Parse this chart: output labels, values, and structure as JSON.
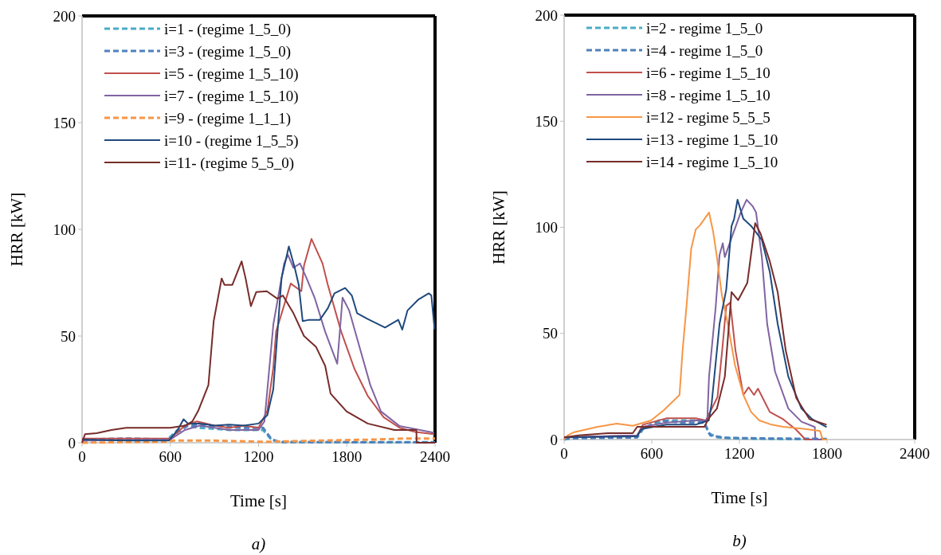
{
  "chart_data": [
    {
      "type": "line",
      "title": "a)",
      "xlabel": "Time [s]",
      "ylabel": "HRR [kW]",
      "xlim": [
        0,
        2400
      ],
      "ylim": [
        0,
        200
      ],
      "xticks": [
        0,
        600,
        1200,
        1800,
        2400
      ],
      "yticks": [
        0,
        50,
        100,
        150,
        200
      ],
      "legend": "top left",
      "grid": false,
      "series": [
        {
          "name": "i=1 - (regime 1_5_0)",
          "color": "#4bacc6",
          "line_style": "dashed",
          "x": [
            0,
            300,
            580,
            650,
            700,
            800,
            1000,
            1150,
            1230,
            1280,
            1320,
            1600,
            2000,
            2400
          ],
          "values": [
            1,
            1.5,
            1.5,
            6,
            8,
            7,
            6,
            6,
            6,
            2,
            0.5,
            0.3,
            0.3,
            0.3
          ]
        },
        {
          "name": "i=3 - (regime 1_5_0)",
          "color": "#4f81bd",
          "line_style": "dashed",
          "x": [
            0,
            300,
            590,
            650,
            720,
            900,
            1100,
            1230,
            1290,
            1350,
            2000,
            2400
          ],
          "values": [
            1.5,
            2,
            1.5,
            5,
            8,
            8,
            7,
            7,
            1.5,
            0.3,
            0.2,
            0.2
          ]
        },
        {
          "name": "i=5 - (regime 1_5_10)",
          "color": "#c0504d",
          "line_style": "solid",
          "x": [
            0,
            300,
            600,
            700,
            780,
            900,
            1000,
            1100,
            1200,
            1260,
            1300,
            1319,
            1419,
            1491,
            1509,
            1560,
            1635,
            1671,
            1762,
            1852,
            1942,
            2050,
            2159,
            2267,
            2394
          ],
          "values": [
            2,
            2,
            2,
            8,
            10,
            8,
            7,
            8,
            7,
            15,
            35,
            52,
            74.6,
            71,
            83,
            95.5,
            84,
            74,
            52,
            34.6,
            22,
            12,
            7,
            5,
            4
          ]
        },
        {
          "name": "i=7 - (regime 1_5_10)",
          "color": "#8064a2",
          "line_style": "solid",
          "x": [
            0,
            600,
            700,
            800,
            1000,
            1200,
            1240,
            1301,
            1374,
            1400,
            1437,
            1482,
            1527,
            1581,
            1653,
            1735,
            1771,
            1816,
            1888,
            1960,
            2032,
            2159,
            2394
          ],
          "values": [
            1,
            1.5,
            6,
            8,
            6,
            6,
            10,
            55.7,
            84,
            88,
            82,
            84,
            77,
            68,
            52,
            37,
            68,
            62,
            44.5,
            27,
            14.7,
            7.8,
            4.7
          ]
        },
        {
          "name": "i=9 - (regime 1_1_1)",
          "color": "#f79646",
          "line_style": "dashed",
          "x": [
            0,
            580,
            620,
            900,
            1200,
            1300,
            1600,
            2000,
            2200,
            2400
          ],
          "values": [
            0,
            0.5,
            1,
            1,
            0.5,
            0.5,
            1,
            1.5,
            2,
            2
          ]
        },
        {
          "name": "i=10 - (regime 1_5_5)",
          "color": "#1f497d",
          "line_style": "solid",
          "x": [
            0,
            300,
            590,
            650,
            690,
            720,
            800,
            900,
            1000,
            1100,
            1200,
            1260,
            1300,
            1356,
            1406,
            1446,
            1473,
            1500,
            1545,
            1617,
            1671,
            1716,
            1789,
            1834,
            1870,
            1942,
            2060,
            2150,
            2177,
            2213,
            2285,
            2357,
            2375,
            2397
          ],
          "values": [
            1.5,
            1,
            1,
            6,
            11,
            9,
            9,
            8,
            8.5,
            8,
            9,
            13,
            25,
            77,
            92,
            82,
            74,
            57,
            57.6,
            57.6,
            63,
            70,
            72.5,
            69,
            60.7,
            58,
            54,
            57.6,
            53,
            62,
            67,
            70,
            69,
            53
          ]
        },
        {
          "name": "i=11- (regime 5_5_0)",
          "color": "#772c2a",
          "line_style": "solid",
          "x": [
            0,
            20,
            100,
            200,
            300,
            400,
            500,
            600,
            700,
            750,
            790,
            859,
            895,
            949,
            968,
            1022,
            1085,
            1112,
            1148,
            1184,
            1256,
            1328,
            1365,
            1437,
            1509,
            1590,
            1653,
            1690,
            1798,
            1942,
            2123,
            2273,
            2275,
            2400
          ],
          "values": [
            0,
            4,
            4.5,
            6,
            7,
            7,
            7,
            7,
            8,
            10,
            15,
            27,
            57,
            77,
            74,
            74,
            85,
            77,
            64,
            70.6,
            71,
            67.5,
            69,
            60.7,
            50,
            45,
            36,
            23,
            14.7,
            9,
            6,
            6,
            0,
            0
          ]
        }
      ]
    },
    {
      "type": "line",
      "title": "b)",
      "xlabel": "Time [s]",
      "ylabel": "HRR [kW]",
      "xlim": [
        0,
        2400
      ],
      "ylim": [
        0,
        200
      ],
      "xticks": [
        0,
        600,
        1200,
        1800,
        2400
      ],
      "yticks": [
        0,
        50,
        100,
        150,
        200
      ],
      "legend": "top left",
      "grid": false,
      "series": [
        {
          "name": "i=2 - regime 1_5_0",
          "color": "#4bacc6",
          "line_style": "dashed",
          "x": [
            0,
            100,
            500,
            530,
            700,
            900,
            960,
            990,
            1050,
            1200,
            1500,
            1800
          ],
          "values": [
            0,
            1,
            1.5,
            5,
            9,
            9,
            8,
            3,
            1,
            0.5,
            0.2,
            0.2
          ]
        },
        {
          "name": "i=4 - regime 1_5_0",
          "color": "#4f81bd",
          "line_style": "dashed",
          "x": [
            0,
            500,
            540,
            650,
            800,
            960,
            1000,
            1100,
            1400,
            1800
          ],
          "values": [
            0.5,
            1,
            5,
            9,
            8,
            8,
            2,
            0.8,
            0.5,
            0.3
          ]
        },
        {
          "name": "i=6 - regime 1_5_10",
          "color": "#c0504d",
          "line_style": "solid",
          "x": [
            0,
            500,
            540,
            700,
            900,
            970,
            1050,
            1082,
            1110,
            1137,
            1173,
            1227,
            1263,
            1300,
            1327,
            1408,
            1499,
            1589,
            1652,
            1700
          ],
          "values": [
            1,
            2,
            7,
            10,
            10,
            9,
            20,
            42,
            63,
            64.5,
            42,
            21,
            24.6,
            21,
            24,
            13,
            9.6,
            4.6,
            0,
            0
          ]
        },
        {
          "name": "i=8 - regime 1_5_10",
          "color": "#8064a2",
          "line_style": "solid",
          "x": [
            0,
            500,
            540,
            700,
            900,
            980,
            992,
            1037,
            1064,
            1086,
            1100,
            1146,
            1209,
            1249,
            1290,
            1314,
            1354,
            1390,
            1444,
            1535,
            1625,
            1716,
            1720,
            1800
          ],
          "values": [
            1,
            2,
            6,
            8,
            9,
            9,
            29.6,
            62,
            87,
            92.5,
            86,
            95,
            107,
            113,
            110,
            107,
            85.7,
            54.5,
            32,
            14.6,
            8.4,
            5.9,
            0,
            0
          ]
        },
        {
          "name": "i=12 - regime 5_5_5",
          "color": "#f79646",
          "line_style": "solid",
          "x": [
            0,
            25,
            70,
            230,
            360,
            470,
            595,
            685,
            790,
            811,
            838,
            870,
            901,
            930,
            992,
            1020,
            1046,
            1080,
            1119,
            1170,
            1227,
            1280,
            1336,
            1420,
            1499,
            1650,
            1752,
            1770,
            1800
          ],
          "values": [
            0,
            2,
            3.5,
            6,
            7.5,
            6.5,
            9,
            14,
            21,
            42,
            63,
            90,
            99,
            101,
            107,
            98,
            86,
            68,
            55,
            35,
            21,
            13,
            9,
            7,
            6,
            5,
            4,
            0,
            0
          ]
        },
        {
          "name": "i=13 - regime 1_5_10",
          "color": "#1f497d",
          "line_style": "solid",
          "x": [
            0,
            500,
            530,
            700,
            900,
            990,
            1010,
            1064,
            1110,
            1146,
            1164,
            1187,
            1227,
            1281,
            1354,
            1408,
            1462,
            1535,
            1625,
            1698,
            1797
          ],
          "values": [
            1,
            1.5,
            5,
            7,
            7,
            9,
            17,
            54.5,
            70.7,
            100.6,
            104,
            113,
            104,
            100.6,
            94,
            79,
            54.5,
            29.6,
            14.6,
            9.6,
            5.9
          ]
        },
        {
          "name": "i=14 - regime 1_5_10",
          "color": "#772c2a",
          "line_style": "solid",
          "x": [
            0,
            100,
            300,
            470,
            500,
            700,
            900,
            960,
            990,
            1046,
            1100,
            1146,
            1191,
            1254,
            1308,
            1345,
            1408,
            1462,
            1517,
            1589,
            1680,
            1797
          ],
          "values": [
            1,
            2,
            3,
            3,
            6,
            6,
            6,
            6,
            10,
            14.6,
            29.6,
            69.5,
            65.7,
            73.8,
            102,
            97,
            84,
            69.5,
            42,
            19.6,
            9.6,
            7
          ]
        }
      ]
    }
  ]
}
